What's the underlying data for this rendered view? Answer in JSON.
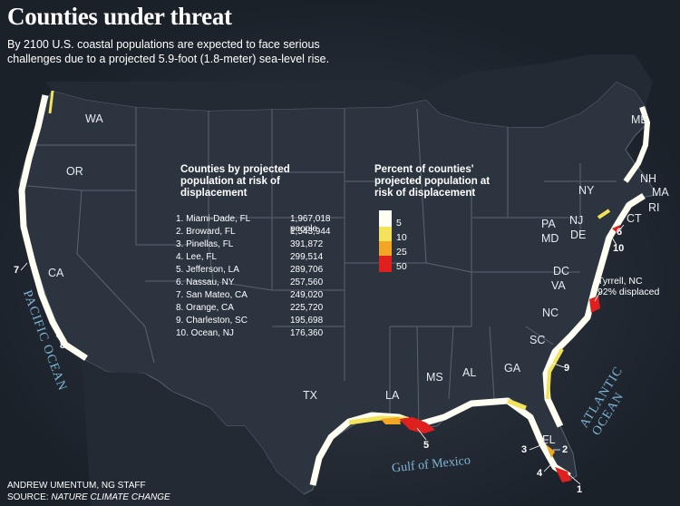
{
  "title": "Counties under threat",
  "subtitle_line1": "By 2100 U.S. coastal populations are expected to face serious",
  "subtitle_line2": "challenges due to a projected 5.9-foot (1.8-meter) sea-level rise.",
  "states": [
    "WA",
    "OR",
    "CA",
    "TX",
    "LA",
    "MS",
    "AL",
    "GA",
    "FL",
    "SC",
    "NC",
    "VA",
    "DC",
    "MD",
    "DE",
    "NJ",
    "PA",
    "NY",
    "CT",
    "RI",
    "MA",
    "NH",
    "ME"
  ],
  "rank_list": {
    "title": "Counties by projected population at risk of displacement",
    "items": [
      {
        "name": "1. Miami-Dade, FL",
        "value": "1,967,018 people"
      },
      {
        "name": "2. Broward, FL",
        "value": "1,543,944"
      },
      {
        "name": "3. Pinellas, FL",
        "value": "391,872"
      },
      {
        "name": "4. Lee, FL",
        "value": "299,514"
      },
      {
        "name": "5. Jefferson, LA",
        "value": "289,706"
      },
      {
        "name": "6. Nassau, NY",
        "value": "257,560"
      },
      {
        "name": "7. San Mateo, CA",
        "value": "249,020"
      },
      {
        "name": "8. Orange, CA",
        "value": "225,720"
      },
      {
        "name": "9. Charleston, SC",
        "value": "195,698"
      },
      {
        "name": "10. Ocean, NJ",
        "value": "176,360"
      }
    ]
  },
  "legend": {
    "title": "Percent of counties' projected population at risk of displacement",
    "items": [
      {
        "label": "5",
        "color": "#fffef2"
      },
      {
        "label": "10",
        "color": "#f3e35a"
      },
      {
        "label": "25",
        "color": "#f2a623"
      },
      {
        "label": "50",
        "color": "#e0201e"
      }
    ]
  },
  "water_labels": {
    "pacific": "PACIFIC OCEAN",
    "atlantic": "ATLANTIC OCEAN",
    "gulf": "Gulf of Mexico"
  },
  "callout_numbers": [
    "1",
    "2",
    "3",
    "4",
    "5",
    "6",
    "7",
    "8",
    "9",
    "10"
  ],
  "tyrrell": {
    "line1": "Tyrrell, NC",
    "line2": "92% displaced"
  },
  "credit": {
    "line1": "ANDREW UMENTUM, NG STAFF",
    "line2_prefix": "SOURCE: ",
    "line2_source": "NATURE CLIMATE CHANGE"
  },
  "colors": {
    "background": "#1b2129",
    "land": "#2c3440",
    "border": "#5a6470",
    "water_text": "#7fb6d9"
  }
}
